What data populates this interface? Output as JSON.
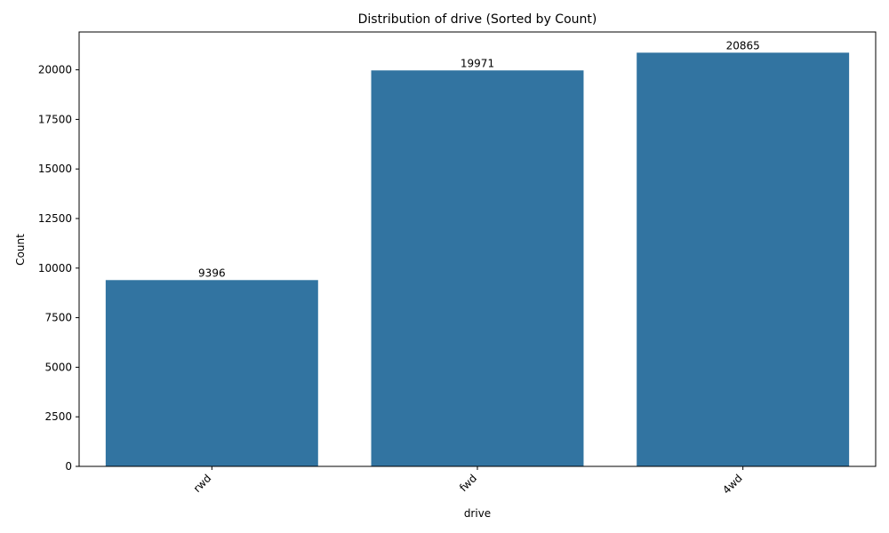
{
  "chart_data": {
    "type": "bar",
    "title": "Distribution of drive (Sorted by Count)",
    "xlabel": "drive",
    "ylabel": "Count",
    "categories": [
      "rwd",
      "fwd",
      "4wd"
    ],
    "values": [
      9396,
      19971,
      20865
    ],
    "data_labels": [
      "9396",
      "19971",
      "20865"
    ],
    "ylim": [
      0,
      21909
    ],
    "yticks": [
      0,
      2500,
      5000,
      7500,
      10000,
      12500,
      15000,
      17500,
      20000
    ],
    "ytick_labels": [
      "0",
      "2500",
      "5000",
      "7500",
      "10000",
      "12500",
      "15000",
      "17500",
      "20000"
    ],
    "grid": false,
    "bar_color": "#3274a1"
  }
}
